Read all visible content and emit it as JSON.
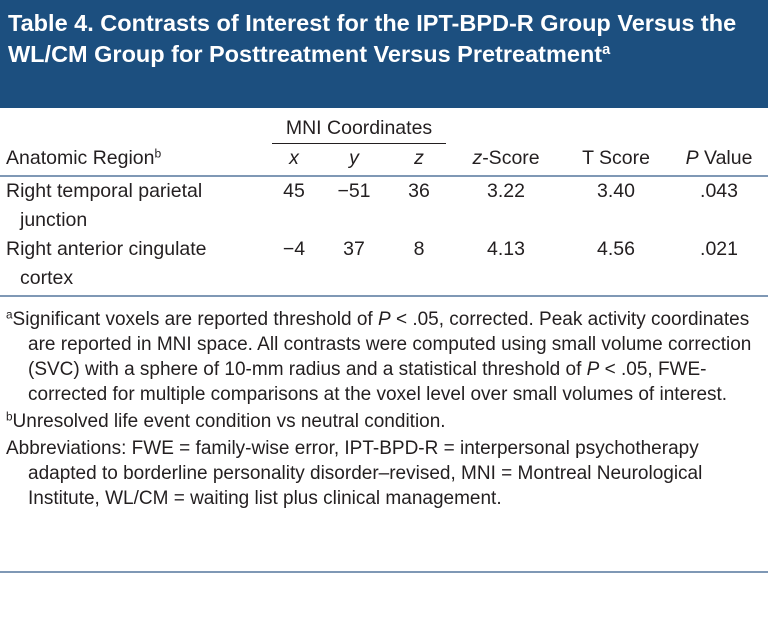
{
  "header": {
    "title": "Table 4. Contrasts of Interest for the IPT-BPD-R Group Versus the WL/CM Group for Posttreatment Versus Pretreatment",
    "title_note": "a"
  },
  "table": {
    "group_header": "MNI Coordinates",
    "columns": [
      {
        "parts": [
          "Anatomic Region"
        ],
        "note": "b"
      },
      {
        "parts": [
          "x"
        ]
      },
      {
        "parts": [
          "y"
        ]
      },
      {
        "parts": [
          "z"
        ]
      },
      {
        "parts": [
          "z",
          "-Score"
        ]
      },
      {
        "parts": [
          "T Score"
        ]
      },
      {
        "parts": [
          "P",
          " Value"
        ]
      }
    ],
    "rows": [
      [
        "Right temporal parietal junction",
        "45",
        "−51",
        "36",
        "3.22",
        "3.40",
        ".043"
      ],
      [
        "Right anterior cingulate cortex",
        "−4",
        "37",
        "8",
        "4.13",
        "4.56",
        ".021"
      ]
    ]
  },
  "footnotes": [
    {
      "marker": "a",
      "parts": [
        "Significant voxels are reported threshold of ",
        "P",
        " < .05, corrected. Peak activity coordinates are reported in MNI space. All contrasts were computed using small volume correction (SVC) with a sphere of 10-mm radius and a statistical threshold of ",
        "P",
        " < .05, FWE-corrected for multiple comparisons at the voxel level over small volumes of interest."
      ]
    },
    {
      "marker": "b",
      "parts": [
        "Unresolved life event condition vs neutral condition."
      ]
    },
    {
      "marker": null,
      "parts": [
        "Abbreviations: FWE = family-wise error, IPT-BPD-R = interpersonal psychotherapy adapted to borderline personality disorder–revised, MNI = Montreal Neurological Institute, WL/CM = waiting list plus clinical management."
      ]
    }
  ]
}
